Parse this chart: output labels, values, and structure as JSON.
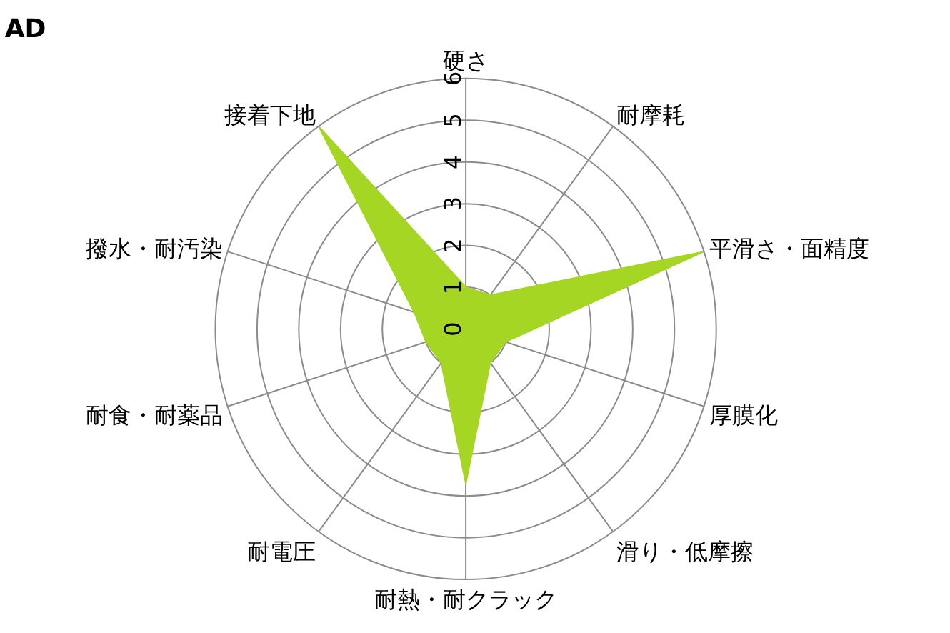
{
  "chart_data": {
    "type": "radar",
    "title": "AD",
    "categories": [
      "硬さ",
      "耐摩耗",
      "平滑さ・面精度",
      "厚膜化",
      "滑り・低摩擦",
      "耐熱・耐クラック",
      "耐電圧",
      "耐食・耐薬品",
      "撥水・耐汚染",
      "接着下地"
    ],
    "series": [
      {
        "color": "#a5d623",
        "values": [
          1,
          1,
          6,
          1,
          1,
          3.7,
          1,
          1,
          1.3,
          6
        ]
      }
    ],
    "ylim": [
      0,
      6
    ],
    "yticks": [
      0,
      1,
      2,
      3,
      4,
      5,
      6
    ],
    "grid": true,
    "legend": false
  }
}
